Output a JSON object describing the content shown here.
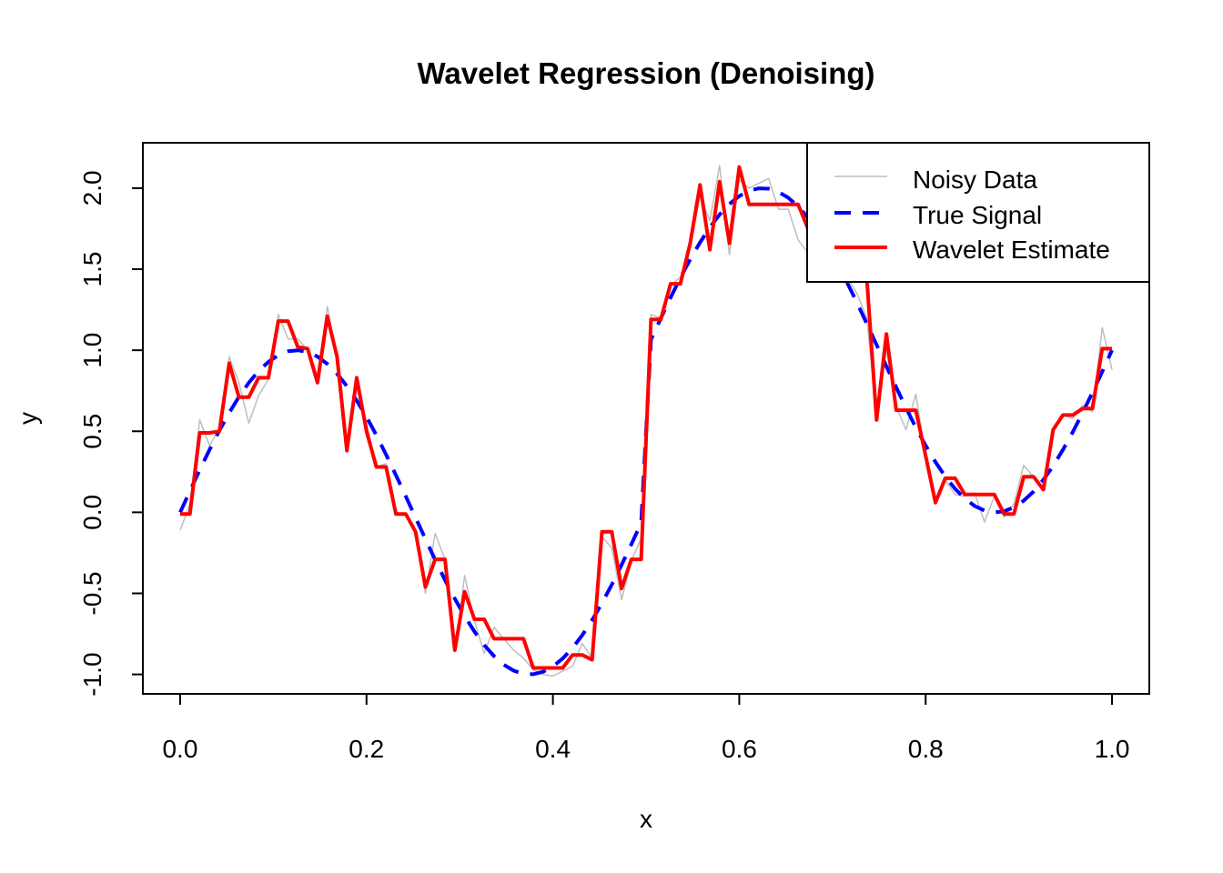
{
  "chart_data": {
    "type": "line",
    "title": "Wavelet Regression (Denoising)",
    "xlabel": "x",
    "ylabel": "y",
    "xlim": [
      -0.04,
      1.04
    ],
    "ylim": [
      -1.12,
      2.28
    ],
    "x_ticks": [
      0.0,
      0.2,
      0.4,
      0.6,
      0.8,
      1.0
    ],
    "x_tick_labels": [
      "0.0",
      "0.2",
      "0.4",
      "0.6",
      "0.8",
      "1.0"
    ],
    "y_ticks": [
      -1.0,
      -0.5,
      0.0,
      0.5,
      1.0,
      1.5,
      2.0
    ],
    "y_tick_labels": [
      "-1.0",
      "-0.5",
      "0.0",
      "0.5",
      "1.0",
      "1.5",
      "2.0"
    ],
    "grid": false,
    "legend_position": "top-right",
    "n_points": 96,
    "x_range": [
      0,
      1
    ],
    "series": [
      {
        "name": "Noisy Data",
        "color": "#bebebe",
        "style": "solid",
        "values": [
          -0.11,
          0.05,
          0.57,
          0.41,
          0.52,
          0.96,
          0.8,
          0.55,
          0.72,
          0.82,
          1.22,
          1.07,
          1.07,
          1.0,
          0.85,
          1.27,
          0.95,
          0.4,
          0.8,
          0.55,
          0.28,
          0.3,
          0.0,
          -0.02,
          -0.13,
          -0.5,
          -0.13,
          -0.29,
          -0.86,
          -0.39,
          -0.67,
          -0.87,
          -0.71,
          -0.78,
          -0.85,
          -0.9,
          -0.97,
          -1.0,
          -1.01,
          -0.98,
          -0.95,
          -0.81,
          -0.9,
          -0.15,
          -0.22,
          -0.54,
          -0.3,
          -0.16,
          1.22,
          1.2,
          1.4,
          1.45,
          1.65,
          1.95,
          1.8,
          2.14,
          1.59,
          2.05,
          2.0,
          2.03,
          2.06,
          1.87,
          1.87,
          1.68,
          1.6,
          1.62,
          1.55,
          1.5,
          1.45,
          1.35,
          1.2,
          0.6,
          1.0,
          0.65,
          0.51,
          0.73,
          0.35,
          0.08,
          0.2,
          0.11,
          0.1,
          0.12,
          -0.06,
          0.1,
          -0.03,
          0.05,
          0.29,
          0.22,
          0.15,
          0.5,
          0.6,
          0.58,
          0.66,
          0.62,
          1.14,
          0.88
        ]
      },
      {
        "name": "True Signal",
        "color": "#0000ff",
        "style": "dashed",
        "function": {
          "amplitude": 1,
          "frequency": 2,
          "step_at": 0.5,
          "step_height": 1
        }
      },
      {
        "name": "Wavelet Estimate",
        "color": "#ff0000",
        "style": "solid",
        "values": [
          -0.01,
          -0.01,
          0.49,
          0.49,
          0.5,
          0.92,
          0.71,
          0.71,
          0.83,
          0.83,
          1.18,
          1.18,
          1.02,
          1.01,
          0.8,
          1.21,
          0.96,
          0.38,
          0.83,
          0.5,
          0.28,
          0.28,
          -0.01,
          -0.01,
          -0.12,
          -0.46,
          -0.29,
          -0.29,
          -0.85,
          -0.49,
          -0.66,
          -0.66,
          -0.78,
          -0.78,
          -0.78,
          -0.78,
          -0.96,
          -0.96,
          -0.96,
          -0.96,
          -0.88,
          -0.88,
          -0.91,
          -0.12,
          -0.12,
          -0.47,
          -0.29,
          -0.29,
          1.19,
          1.19,
          1.41,
          1.41,
          1.66,
          2.02,
          1.62,
          2.04,
          1.66,
          2.13,
          1.9,
          1.9,
          1.9,
          1.9,
          1.9,
          1.9,
          1.75,
          1.65,
          1.6,
          1.55,
          1.5,
          1.5,
          1.45,
          0.57,
          1.1,
          0.63,
          0.63,
          0.63,
          0.35,
          0.06,
          0.21,
          0.21,
          0.11,
          0.11,
          0.11,
          0.11,
          -0.01,
          -0.01,
          0.22,
          0.22,
          0.14,
          0.51,
          0.6,
          0.6,
          0.64,
          0.64,
          1.01,
          1.01
        ]
      }
    ]
  }
}
